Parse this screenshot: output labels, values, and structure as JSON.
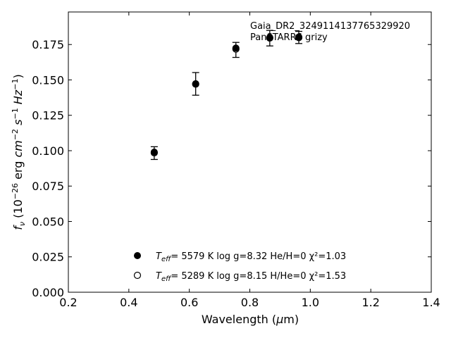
{
  "chart_data": {
    "type": "scatter",
    "annotations": [
      "Gaia_DR2_3249114137765329920",
      "PanSTARRS grizy"
    ],
    "xlabel": "Wavelength (μm)",
    "ylabel": "fν (10⁻²⁶ erg cm⁻² s⁻¹ Hz⁻¹)",
    "xlim": [
      0.2,
      1.4
    ],
    "ylim": [
      0.0,
      0.198
    ],
    "xticks": [
      "0.2",
      "0.4",
      "0.6",
      "0.8",
      "1.0",
      "1.2",
      "1.4"
    ],
    "yticks": [
      "0.000",
      "0.025",
      "0.050",
      "0.075",
      "0.100",
      "0.125",
      "0.150",
      "0.175"
    ],
    "grid": false,
    "legend_position": "lower-center",
    "observed": {
      "x": [
        0.484,
        0.621,
        0.754,
        0.866,
        0.962
      ],
      "y": [
        0.0983,
        0.1472,
        0.1712,
        0.1795,
        0.18
      ],
      "yerr": [
        0.0045,
        0.008,
        0.0053,
        0.0055,
        0.0043
      ]
    },
    "series": [
      {
        "marker": "filled",
        "x": [
          0.484,
          0.621,
          0.754,
          0.866,
          0.962
        ],
        "y": [
          0.099,
          0.1473,
          0.1725,
          0.18,
          0.1803
        ],
        "legend_text": "=  5579 K  log g=8.32  He/H=0  χ²=1.03"
      },
      {
        "marker": "open",
        "x": [
          0.484,
          0.621,
          0.754,
          0.866,
          0.962
        ],
        "y": [
          0.0985,
          0.147,
          0.1718,
          0.1796,
          0.1799
        ],
        "legend_text": "=  5289 K  log g=8.15  H/He=0  χ²=1.53"
      }
    ]
  }
}
